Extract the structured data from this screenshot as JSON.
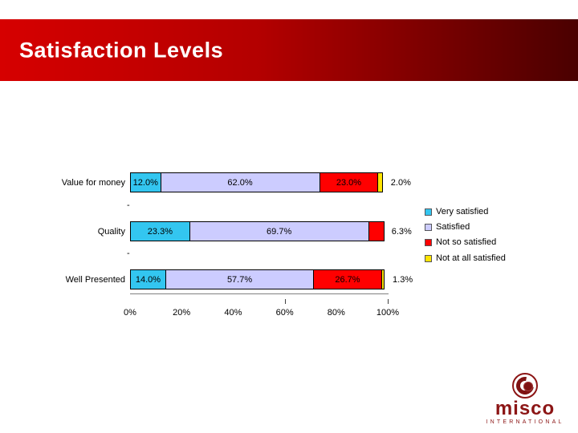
{
  "slide": {
    "title": "Satisfaction Levels"
  },
  "banner": {
    "gradient_from": "#d60000",
    "gradient_mid": "#b30000",
    "gradient_to": "#4a0000"
  },
  "chart_data": {
    "type": "bar",
    "orientation": "horizontal",
    "stacked": true,
    "categories": [
      "Value for money",
      "Quality",
      "Well Presented"
    ],
    "blank_marker": "-",
    "series": [
      {
        "name": "Very satisfied",
        "color": "#33c6f0",
        "values": [
          12.0,
          23.3,
          14.0
        ]
      },
      {
        "name": "Satisfied",
        "color": "#ccccff",
        "values": [
          62.0,
          69.7,
          57.7
        ]
      },
      {
        "name": "Not so satisfied",
        "color": "#ff0000",
        "values": [
          23.0,
          6.3,
          26.7
        ]
      },
      {
        "name": "Not at all satisfied",
        "color": "#ffe400",
        "values": [
          2.0,
          0,
          1.3
        ]
      }
    ],
    "rows": [
      {
        "category": "Value for money",
        "segments": [
          {
            "series": "Very satisfied",
            "value": 12.0,
            "label": "12.0%",
            "label_pos": "inside"
          },
          {
            "series": "Satisfied",
            "value": 62.0,
            "label": "62.0%",
            "label_pos": "inside"
          },
          {
            "series": "Not so satisfied",
            "value": 23.0,
            "label": "23.0%",
            "label_pos": "inside"
          },
          {
            "series": "Not at all satisfied",
            "value": 2.0,
            "label": "2.0%",
            "label_pos": "outside"
          }
        ]
      },
      {
        "category": "Quality",
        "segments": [
          {
            "series": "Very satisfied",
            "value": 23.3,
            "label": "23.3%",
            "label_pos": "inside"
          },
          {
            "series": "Satisfied",
            "value": 69.7,
            "label": "69.7%",
            "label_pos": "inside"
          },
          {
            "series": "Not so satisfied",
            "value": 6.3,
            "label": "6.3%",
            "label_pos": "outside"
          }
        ]
      },
      {
        "category": "Well Presented",
        "segments": [
          {
            "series": "Very satisfied",
            "value": 14.0,
            "label": "14.0%",
            "label_pos": "inside"
          },
          {
            "series": "Satisfied",
            "value": 57.7,
            "label": "57.7%",
            "label_pos": "inside"
          },
          {
            "series": "Not so satisfied",
            "value": 26.7,
            "label": "26.7%",
            "label_pos": "inside"
          },
          {
            "series": "Not at all satisfied",
            "value": 1.3,
            "label": "1.3%",
            "label_pos": "outside"
          }
        ]
      }
    ],
    "x_ticks": [
      "0%",
      "20%",
      "40%",
      "60%",
      "80%",
      "100%"
    ],
    "xlim": [
      0,
      100
    ],
    "legend": [
      {
        "label": "Very satisfied",
        "color": "#33c6f0"
      },
      {
        "label": "Satisfied",
        "color": "#ccccff"
      },
      {
        "label": "Not so satisfied",
        "color": "#ff0000"
      },
      {
        "label": "Not at all satisfied",
        "color": "#ffe400"
      }
    ],
    "legend_position": "right",
    "grid": false
  },
  "logo": {
    "wordmark": "misco",
    "subtext": "INTERNATIONAL",
    "color": "#8c1515"
  }
}
